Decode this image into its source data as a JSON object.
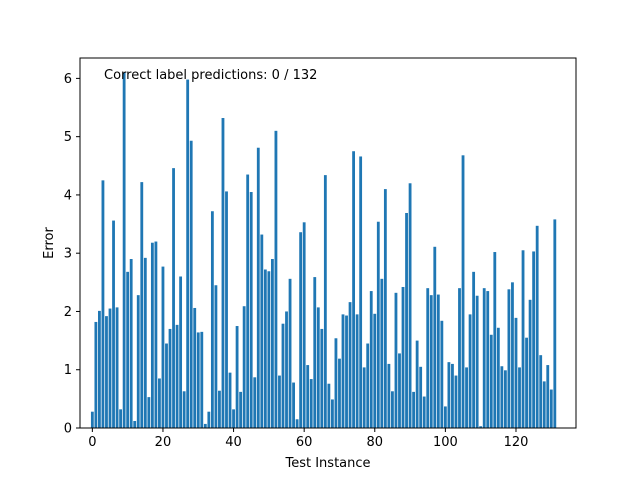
{
  "chart_data": {
    "type": "bar",
    "xlabel": "Test Instance",
    "ylabel": "Error",
    "annotation": "Correct label predictions: 0 / 132",
    "bar_color": "#1f77b4",
    "xlim": [
      -3.5,
      137
    ],
    "ylim": [
      0,
      6.35
    ],
    "xticks": [
      0,
      20,
      40,
      60,
      80,
      100,
      120
    ],
    "yticks": [
      0,
      1,
      2,
      3,
      4,
      5,
      6
    ],
    "grid": false,
    "x": [
      0,
      1,
      2,
      3,
      4,
      5,
      6,
      7,
      8,
      9,
      10,
      11,
      12,
      13,
      14,
      15,
      16,
      17,
      18,
      19,
      20,
      21,
      22,
      23,
      24,
      25,
      26,
      27,
      28,
      29,
      30,
      31,
      32,
      33,
      34,
      35,
      36,
      37,
      38,
      39,
      40,
      41,
      42,
      43,
      44,
      45,
      46,
      47,
      48,
      49,
      50,
      51,
      52,
      53,
      54,
      55,
      56,
      57,
      58,
      59,
      60,
      61,
      62,
      63,
      64,
      65,
      66,
      67,
      68,
      69,
      70,
      71,
      72,
      73,
      74,
      75,
      76,
      77,
      78,
      79,
      80,
      81,
      82,
      83,
      84,
      85,
      86,
      87,
      88,
      89,
      90,
      91,
      92,
      93,
      94,
      95,
      96,
      97,
      98,
      99,
      100,
      101,
      102,
      103,
      104,
      105,
      106,
      107,
      108,
      109,
      110,
      111,
      112,
      113,
      114,
      115,
      116,
      117,
      118,
      119,
      120,
      121,
      122,
      123,
      124,
      125,
      126,
      127,
      128,
      129,
      130,
      131
    ],
    "values": [
      0.28,
      1.82,
      2.01,
      4.25,
      1.92,
      2.05,
      3.56,
      2.07,
      0.32,
      6.1,
      2.68,
      2.9,
      0.12,
      2.28,
      4.22,
      2.92,
      0.53,
      3.18,
      3.2,
      0.85,
      2.77,
      1.45,
      1.7,
      4.46,
      1.77,
      2.6,
      0.63,
      5.98,
      4.93,
      2.06,
      1.64,
      1.65,
      0.07,
      0.28,
      3.72,
      2.45,
      0.64,
      5.32,
      4.06,
      0.95,
      0.32,
      1.75,
      0.62,
      2.09,
      4.35,
      4.05,
      0.87,
      4.81,
      3.32,
      2.72,
      2.69,
      2.9,
      5.1,
      0.9,
      1.79,
      2.0,
      2.56,
      0.78,
      0.15,
      3.36,
      3.53,
      1.08,
      0.84,
      2.59,
      2.07,
      1.7,
      4.34,
      0.76,
      0.49,
      1.54,
      1.19,
      1.95,
      1.93,
      2.16,
      4.75,
      1.95,
      4.66,
      1.04,
      1.45,
      2.35,
      1.96,
      3.54,
      2.56,
      4.1,
      1.1,
      0.63,
      2.32,
      1.28,
      2.42,
      3.69,
      4.2,
      0.62,
      1.5,
      1.05,
      0.54,
      2.4,
      2.28,
      3.11,
      2.29,
      1.84,
      0.37,
      1.13,
      1.1,
      0.9,
      2.4,
      4.68,
      1.04,
      1.95,
      2.68,
      2.27,
      0.03,
      2.4,
      2.35,
      1.6,
      3.02,
      1.72,
      1.06,
      0.99,
      2.38,
      2.5,
      1.89,
      1.04,
      3.05,
      1.55,
      2.2,
      3.03,
      3.47,
      1.25,
      0.8,
      1.08,
      0.66,
      3.58
    ]
  }
}
